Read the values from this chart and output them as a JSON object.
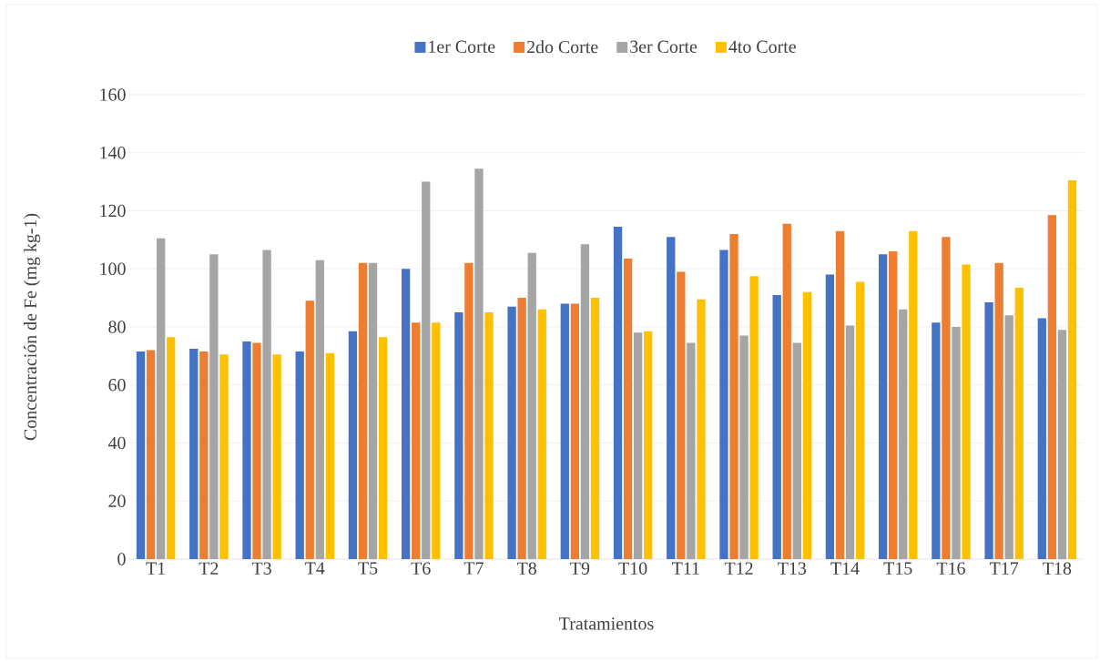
{
  "chart_data": {
    "type": "bar",
    "xlabel": "Tratamientos",
    "ylabel": "Concentración de Fe (mg kg-1)",
    "categories": [
      "T1",
      "T2",
      "T3",
      "T4",
      "T5",
      "T6",
      "T7",
      "T8",
      "T9",
      "T10",
      "T11",
      "T12",
      "T13",
      "T14",
      "T15",
      "T16",
      "T17",
      "T18"
    ],
    "series": [
      {
        "name": "1er Corte",
        "color": "#4472c4",
        "values": [
          71.5,
          72.5,
          75,
          71.5,
          78.5,
          100,
          85,
          87,
          88,
          114.5,
          111,
          106.5,
          91,
          98,
          105,
          81.5,
          88.5,
          83
        ]
      },
      {
        "name": "2do Corte",
        "color": "#ed7d31",
        "values": [
          72,
          71.5,
          74.5,
          89,
          102,
          81.5,
          102,
          90,
          88,
          103.5,
          99,
          112,
          115.5,
          113,
          106,
          111,
          102,
          118.5
        ]
      },
      {
        "name": "3er Corte",
        "color": "#a5a5a5",
        "values": [
          110.5,
          105,
          106.5,
          103,
          102,
          130,
          134.5,
          105.5,
          108.5,
          78,
          74.5,
          77,
          74.5,
          80.5,
          86,
          80,
          84,
          79
        ]
      },
      {
        "name": "4to Corte",
        "color": "#ffc000",
        "values": [
          76.5,
          70.5,
          70.5,
          71,
          76.5,
          81.5,
          85,
          86,
          90,
          78.5,
          89.5,
          97.5,
          92,
          95.5,
          113,
          101.5,
          93.5,
          130.5
        ]
      }
    ],
    "ylim": [
      0,
      160
    ],
    "yticks": [
      0,
      20,
      40,
      60,
      80,
      100,
      120,
      140,
      160
    ],
    "grid": "y",
    "legend": "top"
  }
}
